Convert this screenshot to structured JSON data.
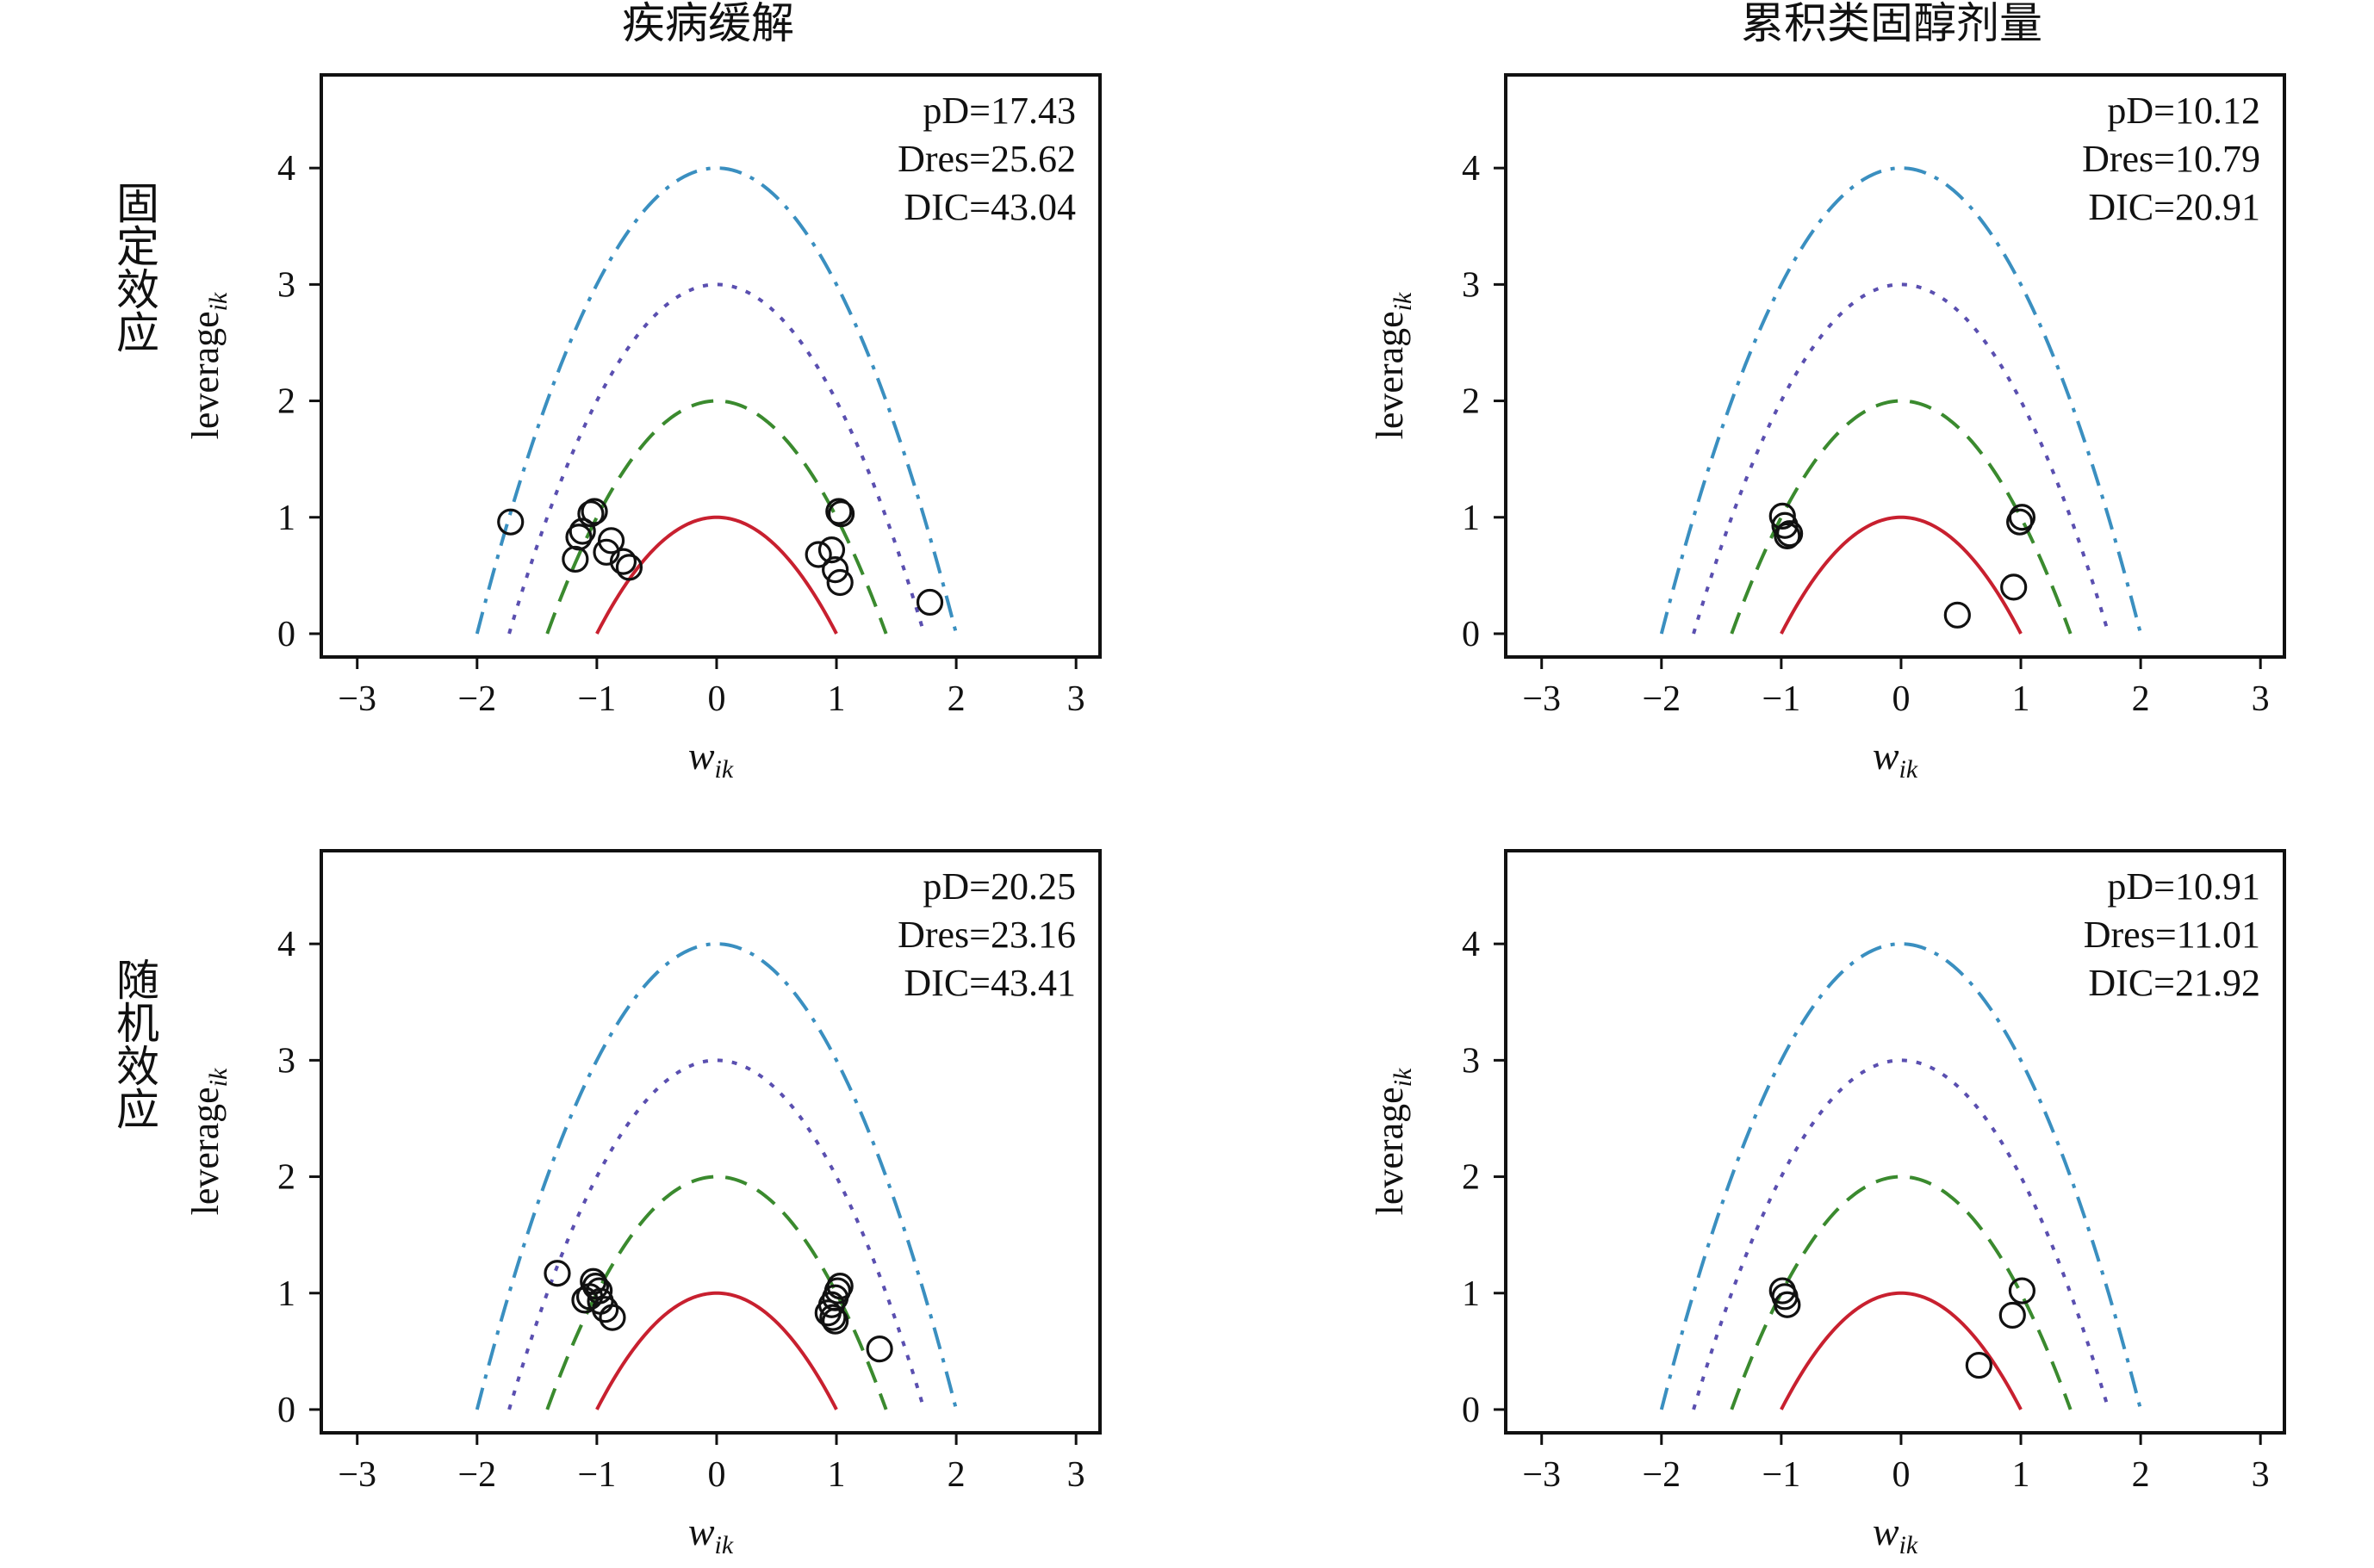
{
  "figure": {
    "col_titles": [
      "疾病缓解",
      "累积类固醇剂量"
    ],
    "row_labels": [
      "固定效应",
      "随机效应"
    ]
  },
  "colors": {
    "c1": "#c8202f",
    "c2": "#3a8a2e",
    "c3": "#5a4fb0",
    "c4": "#3a8fc0",
    "points": "#111111",
    "frame": "#111111"
  },
  "chart_data": [
    {
      "type": "scatter",
      "id": "p11",
      "col_title": "疾病缓解",
      "row_label": "固定效应",
      "xlabel_main": "w",
      "xlabel_sub": "ik",
      "ylabel_main": "leverage",
      "ylabel_sub": "ik",
      "xlim": [
        -3.3,
        3.2
      ],
      "ylim": [
        -0.2,
        4.8
      ],
      "xticks": [
        -3,
        -2,
        -1,
        0,
        1,
        2,
        3
      ],
      "xtick_labels": [
        "−3",
        "−2",
        "−1",
        "0",
        "1",
        "2",
        "3"
      ],
      "yticks": [
        0,
        1,
        2,
        3,
        4
      ],
      "ytick_labels": [
        "0",
        "1",
        "2",
        "3",
        "4"
      ],
      "stats": {
        "pD": "pD=17.43",
        "Dres": "Dres=25.62",
        "DIC": "DIC=43.04"
      },
      "curves": [
        {
          "name": "c=1",
          "c": 1,
          "style": "solid",
          "color": "#c8202f"
        },
        {
          "name": "c=2",
          "c": 2,
          "style": "dashed",
          "color": "#3a8a2e"
        },
        {
          "name": "c=3",
          "c": 3,
          "style": "dotted",
          "color": "#5a4fb0"
        },
        {
          "name": "c=4",
          "c": 4,
          "style": "dashdot",
          "color": "#3a8fc0"
        }
      ],
      "points": [
        {
          "x": -1.72,
          "y": 0.96
        },
        {
          "x": -1.02,
          "y": 1.05
        },
        {
          "x": -1.05,
          "y": 1.03
        },
        {
          "x": -1.12,
          "y": 0.88
        },
        {
          "x": -1.15,
          "y": 0.83
        },
        {
          "x": -0.88,
          "y": 0.8
        },
        {
          "x": -0.92,
          "y": 0.7
        },
        {
          "x": -1.18,
          "y": 0.64
        },
        {
          "x": -0.78,
          "y": 0.62
        },
        {
          "x": -0.73,
          "y": 0.57
        },
        {
          "x": 1.02,
          "y": 1.05
        },
        {
          "x": 1.04,
          "y": 1.03
        },
        {
          "x": 0.96,
          "y": 0.72
        },
        {
          "x": 0.85,
          "y": 0.68
        },
        {
          "x": 0.99,
          "y": 0.55
        },
        {
          "x": 1.03,
          "y": 0.44
        },
        {
          "x": 1.78,
          "y": 0.27
        }
      ]
    },
    {
      "type": "scatter",
      "id": "p12",
      "col_title": "累积类固醇剂量",
      "row_label": "固定效应",
      "xlabel_main": "w",
      "xlabel_sub": "ik",
      "ylabel_main": "leverage",
      "ylabel_sub": "ik",
      "xlim": [
        -3.3,
        3.2
      ],
      "ylim": [
        -0.2,
        4.8
      ],
      "xticks": [
        -3,
        -2,
        -1,
        0,
        1,
        2,
        3
      ],
      "xtick_labels": [
        "−3",
        "−2",
        "−1",
        "0",
        "1",
        "2",
        "3"
      ],
      "yticks": [
        0,
        1,
        2,
        3,
        4
      ],
      "ytick_labels": [
        "0",
        "1",
        "2",
        "3",
        "4"
      ],
      "stats": {
        "pD": "pD=10.12",
        "Dres": "Dres=10.79",
        "DIC": "DIC=20.91"
      },
      "curves": [
        {
          "name": "c=1",
          "c": 1,
          "style": "solid",
          "color": "#c8202f"
        },
        {
          "name": "c=2",
          "c": 2,
          "style": "dashed",
          "color": "#3a8a2e"
        },
        {
          "name": "c=3",
          "c": 3,
          "style": "dotted",
          "color": "#5a4fb0"
        },
        {
          "name": "c=4",
          "c": 4,
          "style": "dashdot",
          "color": "#3a8fc0"
        }
      ],
      "points": [
        {
          "x": -0.99,
          "y": 1.01
        },
        {
          "x": -0.97,
          "y": 0.93
        },
        {
          "x": -0.93,
          "y": 0.86
        },
        {
          "x": -0.95,
          "y": 0.84
        },
        {
          "x": 1.01,
          "y": 1.0
        },
        {
          "x": 0.99,
          "y": 0.96
        },
        {
          "x": 0.94,
          "y": 0.4
        },
        {
          "x": 0.47,
          "y": 0.16
        }
      ]
    },
    {
      "type": "scatter",
      "id": "p21",
      "col_title": "疾病缓解",
      "row_label": "随机效应",
      "xlabel_main": "w",
      "xlabel_sub": "ik",
      "ylabel_main": "leverage",
      "ylabel_sub": "ik",
      "xlim": [
        -3.3,
        3.2
      ],
      "ylim": [
        -0.2,
        4.8
      ],
      "xticks": [
        -3,
        -2,
        -1,
        0,
        1,
        2,
        3
      ],
      "xtick_labels": [
        "−3",
        "−2",
        "−1",
        "0",
        "1",
        "2",
        "3"
      ],
      "yticks": [
        0,
        1,
        2,
        3,
        4
      ],
      "ytick_labels": [
        "0",
        "1",
        "2",
        "3",
        "4"
      ],
      "stats": {
        "pD": "pD=20.25",
        "Dres": "Dres=23.16",
        "DIC": "DIC=43.41"
      },
      "curves": [
        {
          "name": "c=1",
          "c": 1,
          "style": "solid",
          "color": "#c8202f"
        },
        {
          "name": "c=2",
          "c": 2,
          "style": "dashed",
          "color": "#3a8a2e"
        },
        {
          "name": "c=3",
          "c": 3,
          "style": "dotted",
          "color": "#5a4fb0"
        },
        {
          "name": "c=4",
          "c": 4,
          "style": "dashdot",
          "color": "#3a8fc0"
        }
      ],
      "points": [
        {
          "x": -1.33,
          "y": 1.17
        },
        {
          "x": -1.03,
          "y": 1.1
        },
        {
          "x": -1.01,
          "y": 1.06
        },
        {
          "x": -0.98,
          "y": 1.02
        },
        {
          "x": -1.06,
          "y": 0.97
        },
        {
          "x": -0.97,
          "y": 0.93
        },
        {
          "x": -1.1,
          "y": 0.94
        },
        {
          "x": -0.93,
          "y": 0.86
        },
        {
          "x": -0.87,
          "y": 0.79
        },
        {
          "x": 1.03,
          "y": 1.06
        },
        {
          "x": 1.01,
          "y": 1.02
        },
        {
          "x": 0.99,
          "y": 0.96
        },
        {
          "x": 0.96,
          "y": 0.9
        },
        {
          "x": 0.93,
          "y": 0.83
        },
        {
          "x": 0.97,
          "y": 0.79
        },
        {
          "x": 0.99,
          "y": 0.76
        },
        {
          "x": 1.36,
          "y": 0.52
        }
      ]
    },
    {
      "type": "scatter",
      "id": "p22",
      "col_title": "累积类固醇剂量",
      "row_label": "随机效应",
      "xlabel_main": "w",
      "xlabel_sub": "ik",
      "ylabel_main": "leverage",
      "ylabel_sub": "ik",
      "xlim": [
        -3.3,
        3.2
      ],
      "ylim": [
        -0.2,
        4.8
      ],
      "xticks": [
        -3,
        -2,
        -1,
        0,
        1,
        2,
        3
      ],
      "xtick_labels": [
        "−3",
        "−2",
        "−1",
        "0",
        "1",
        "2",
        "3"
      ],
      "yticks": [
        0,
        1,
        2,
        3,
        4
      ],
      "ytick_labels": [
        "0",
        "1",
        "2",
        "3",
        "4"
      ],
      "stats": {
        "pD": "pD=10.91",
        "Dres": "Dres=11.01",
        "DIC": "DIC=21.92"
      },
      "curves": [
        {
          "name": "c=1",
          "c": 1,
          "style": "solid",
          "color": "#c8202f"
        },
        {
          "name": "c=2",
          "c": 2,
          "style": "dashed",
          "color": "#3a8a2e"
        },
        {
          "name": "c=3",
          "c": 3,
          "style": "dotted",
          "color": "#5a4fb0"
        },
        {
          "name": "c=4",
          "c": 4,
          "style": "dashdot",
          "color": "#3a8fc0"
        }
      ],
      "points": [
        {
          "x": -0.99,
          "y": 1.02
        },
        {
          "x": -0.97,
          "y": 0.97
        },
        {
          "x": -0.95,
          "y": 0.9
        },
        {
          "x": 1.01,
          "y": 1.02
        },
        {
          "x": 0.93,
          "y": 0.81
        },
        {
          "x": 0.65,
          "y": 0.38
        }
      ]
    }
  ]
}
